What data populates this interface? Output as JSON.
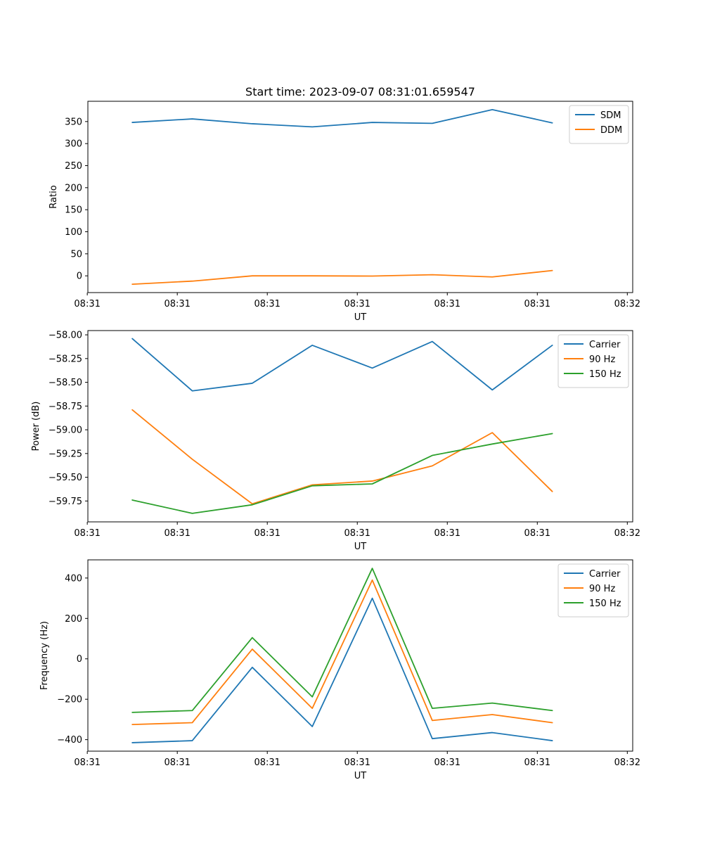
{
  "chart_data": [
    {
      "type": "line",
      "title": "Start time: 2023-09-07 08:31:01.659547",
      "xlabel": "UT",
      "ylabel": "Ratio",
      "x": [
        0,
        1,
        2,
        3,
        4,
        5,
        6,
        7
      ],
      "xlim": [
        -0.74,
        8.34
      ],
      "ylim": [
        -38,
        396
      ],
      "xticks": [
        -0.75,
        0.75,
        2.25,
        3.75,
        5.25,
        6.75,
        8.25
      ],
      "xtick_labels": [
        "08:31",
        "08:31",
        "08:31",
        "08:31",
        "08:31",
        "08:31",
        "08:32"
      ],
      "yticks": [
        0,
        50,
        100,
        150,
        200,
        250,
        300,
        350
      ],
      "ytick_labels": [
        "0",
        "50",
        "100",
        "150",
        "200",
        "250",
        "300",
        "350"
      ],
      "legend": "top-right",
      "series": [
        {
          "name": "SDM",
          "color": "#1f77b4",
          "values": [
            348,
            356,
            345,
            338,
            348,
            346,
            377,
            347
          ]
        },
        {
          "name": "DDM",
          "color": "#ff7f0e",
          "values": [
            -19,
            -12,
            0,
            0,
            -0.5,
            2.5,
            -2.5,
            12
          ]
        }
      ]
    },
    {
      "type": "line",
      "xlabel": "UT",
      "ylabel": "Power (dB)",
      "x": [
        0,
        1,
        2,
        3,
        4,
        5,
        6,
        7
      ],
      "xlim": [
        -0.74,
        8.34
      ],
      "ylim": [
        -59.97,
        -57.955
      ],
      "xticks": [
        -0.75,
        0.75,
        2.25,
        3.75,
        5.25,
        6.75,
        8.25
      ],
      "xtick_labels": [
        "08:31",
        "08:31",
        "08:31",
        "08:31",
        "08:31",
        "08:31",
        "08:32"
      ],
      "yticks": [
        -59.75,
        -59.5,
        -59.25,
        -59.0,
        -58.75,
        -58.5,
        -58.25,
        -58.0
      ],
      "ytick_labels": [
        "−59.75",
        "−59.50",
        "−59.25",
        "−59.00",
        "−58.75",
        "−58.50",
        "−58.25",
        "−58.00"
      ],
      "legend": "top-right",
      "series": [
        {
          "name": "Carrier",
          "color": "#1f77b4",
          "values": [
            -58.04,
            -58.59,
            -58.51,
            -58.11,
            -58.35,
            -58.07,
            -58.58,
            -58.11
          ]
        },
        {
          "name": "90 Hz",
          "color": "#ff7f0e",
          "values": [
            -58.79,
            -59.31,
            -59.78,
            -59.58,
            -59.54,
            -59.38,
            -59.03,
            -59.65
          ]
        },
        {
          "name": "150 Hz",
          "color": "#2ca02c",
          "values": [
            -59.74,
            -59.88,
            -59.79,
            -59.59,
            -59.57,
            -59.27,
            -59.15,
            -59.04
          ]
        }
      ]
    },
    {
      "type": "line",
      "xlabel": "UT",
      "ylabel": "Frequency (Hz)",
      "x": [
        0,
        1,
        2,
        3,
        4,
        5,
        6,
        7
      ],
      "xlim": [
        -0.74,
        8.34
      ],
      "ylim": [
        -457,
        490
      ],
      "xticks": [
        -0.75,
        0.75,
        2.25,
        3.75,
        5.25,
        6.75,
        8.25
      ],
      "xtick_labels": [
        "08:31",
        "08:31",
        "08:31",
        "08:31",
        "08:31",
        "08:31",
        "08:32"
      ],
      "yticks": [
        -400,
        -200,
        0,
        200,
        400
      ],
      "ytick_labels": [
        "−400",
        "−200",
        "0",
        "200",
        "400"
      ],
      "legend": "top-right",
      "series": [
        {
          "name": "Carrier",
          "color": "#1f77b4",
          "values": [
            -415,
            -405,
            -42,
            -335,
            300,
            -395,
            -365,
            -405
          ]
        },
        {
          "name": "90 Hz",
          "color": "#ff7f0e",
          "values": [
            -325,
            -316,
            48,
            -245,
            390,
            -305,
            -276,
            -316
          ]
        },
        {
          "name": "150 Hz",
          "color": "#2ca02c",
          "values": [
            -265,
            -256,
            105,
            -188,
            448,
            -245,
            -219,
            -256
          ]
        }
      ]
    }
  ]
}
